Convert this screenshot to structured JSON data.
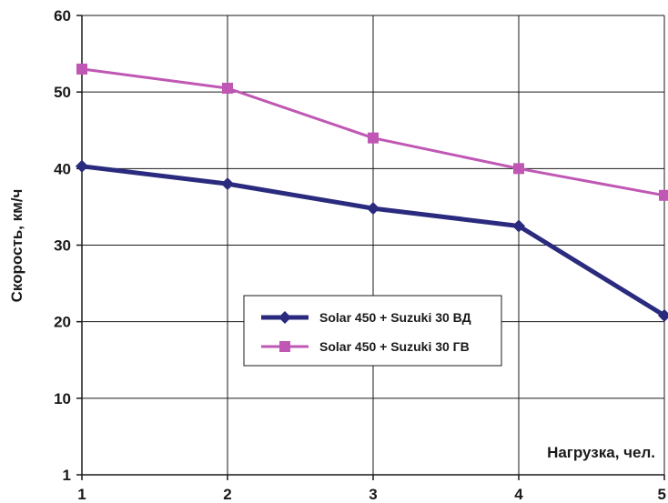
{
  "chart_data": {
    "type": "line",
    "title": "",
    "xlabel": "Нагрузка, чел.",
    "ylabel": "Скорость, км/ч",
    "x": [
      1,
      2,
      3,
      4,
      5
    ],
    "xlim": [
      1,
      5
    ],
    "ylim": [
      1,
      60
    ],
    "yticks": [
      1,
      10,
      20,
      30,
      40,
      50,
      60
    ],
    "grid": true,
    "legend_position": "center",
    "series": [
      {
        "name": "Solar 450 + Suzuki 30 ВД",
        "values": [
          40.3,
          38.0,
          34.8,
          32.5,
          20.8
        ],
        "color": "#2a2a7e",
        "marker": "diamond"
      },
      {
        "name": "Solar 450 + Suzuki 30 ГВ",
        "values": [
          53.0,
          50.5,
          44.0,
          40.0,
          36.5
        ],
        "color": "#c057b4",
        "marker": "square"
      }
    ]
  }
}
